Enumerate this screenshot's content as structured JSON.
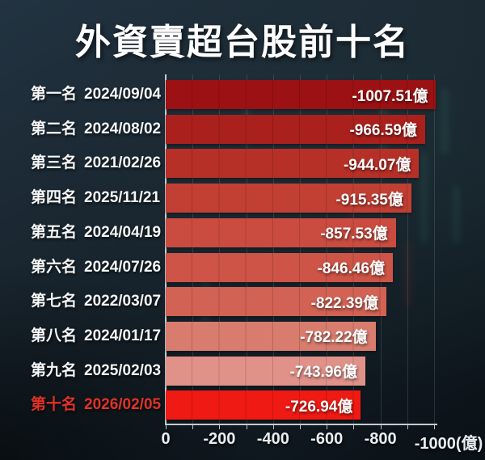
{
  "chart_data": {
    "type": "bar",
    "orientation": "horizontal",
    "title": "外資賣超台股前十名",
    "unit": "億",
    "xlim": [
      0,
      -1000
    ],
    "grid": true,
    "grid_interval": 100,
    "x_tick_values": [
      0,
      -200,
      -400,
      -600,
      -800,
      -1000
    ],
    "x_tick_labels": [
      "0",
      "-200",
      "-400",
      "-600",
      "-800",
      "-1000(億)"
    ],
    "rows": [
      {
        "rank": "第一名",
        "date": "2024/09/04",
        "value": -1007.51,
        "value_label": "-1007.51億",
        "bar_color": "#9c1113",
        "label_color": "#f5f7f8"
      },
      {
        "rank": "第二名",
        "date": "2024/08/02",
        "value": -966.59,
        "value_label": "-966.59億",
        "bar_color": "#aa201c",
        "label_color": "#f5f7f8"
      },
      {
        "rank": "第三名",
        "date": "2021/02/26",
        "value": -944.07,
        "value_label": "-944.07億",
        "bar_color": "#b73028",
        "label_color": "#f5f7f8"
      },
      {
        "rank": "第四名",
        "date": "2025/11/21",
        "value": -915.35,
        "value_label": "-915.35億",
        "bar_color": "#c23f34",
        "label_color": "#f5f7f8"
      },
      {
        "rank": "第五名",
        "date": "2024/04/19",
        "value": -857.53,
        "value_label": "-857.53億",
        "bar_color": "#ca4c40",
        "label_color": "#f5f7f8"
      },
      {
        "rank": "第六名",
        "date": "2024/07/26",
        "value": -846.46,
        "value_label": "-846.46億",
        "bar_color": "#cd5447",
        "label_color": "#f5f7f8"
      },
      {
        "rank": "第七名",
        "date": "2022/03/07",
        "value": -822.39,
        "value_label": "-822.39億",
        "bar_color": "#d16254",
        "label_color": "#f5f7f8"
      },
      {
        "rank": "第八名",
        "date": "2024/01/17",
        "value": -782.22,
        "value_label": "-782.22億",
        "bar_color": "#d87c6e",
        "label_color": "#f5f7f8"
      },
      {
        "rank": "第九名",
        "date": "2025/02/03",
        "value": -743.96,
        "value_label": "-743.96億",
        "bar_color": "#e09289",
        "label_color": "#f5f7f8"
      },
      {
        "rank": "第十名",
        "date": "2026/02/05",
        "value": -726.94,
        "value_label": "-726.94億",
        "bar_color": "#ef1a13",
        "label_color": "#e23226"
      }
    ]
  },
  "colors": {
    "highlight_text": "#e23226",
    "axis": "#c3ccd1",
    "value_text": "#ffffff",
    "title_text": "#ffffff"
  }
}
